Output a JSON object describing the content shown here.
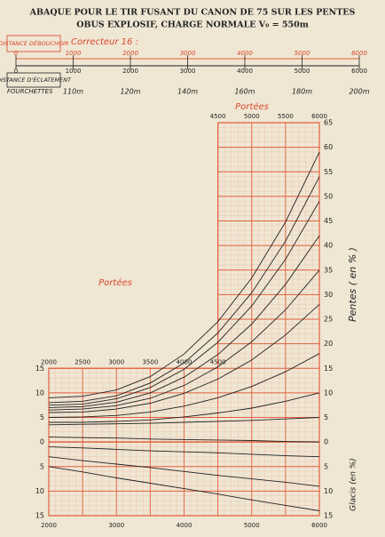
{
  "chart_data": {
    "type": "line",
    "title": "ABAQUE POUR LE TIR FUSANT DU CANON DE 75 SUR LES PENTES",
    "subtitle": "OBUS EXPLOSIF, CHARGE NORMALE V₀ = 550m",
    "fuse_scale": {
      "label": "DISTANCE DÉBOUCHOIR",
      "corrector": "Correcteur 16 :",
      "burst_label": "DISTANCE D'ÉCLATEMENT",
      "lim": [
        0,
        6000
      ],
      "ticks": [
        0,
        1000,
        2000,
        3000,
        4000,
        5000,
        6000
      ],
      "fork_label": "FOURCHETTES",
      "forks": [
        "110m",
        "120m",
        "140m",
        "160m",
        "180m",
        "200m"
      ]
    },
    "range_label": "Portées",
    "ylabel": "Pentes ( en % )",
    "y_lower_label": "Glacis (en %)",
    "x": [
      2000,
      2500,
      3000,
      3500,
      4000,
      4500,
      5000,
      5500,
      6000
    ],
    "xlim": [
      2000,
      6000
    ],
    "xticks": [
      2000,
      2500,
      3000,
      3500,
      4000,
      4500,
      5000,
      5500,
      6000
    ],
    "ylim": [
      -15,
      65
    ],
    "yticks": [
      {
        "value": -15,
        "label": "15"
      },
      {
        "value": -10,
        "label": "10"
      },
      {
        "value": -5,
        "label": "5"
      },
      0,
      5,
      10,
      15,
      20,
      25,
      30,
      35,
      40,
      45,
      50,
      55,
      60,
      65
    ],
    "grid": true,
    "grid_color": "#e2603f",
    "series": [
      {
        "color": "#222",
        "values": [
          9,
          9.3,
          10.6,
          13.3,
          17.9,
          24.5,
          33.4,
          44.8,
          59
        ]
      },
      {
        "color": "#222",
        "values": [
          8,
          8.3,
          9.4,
          12,
          16.1,
          22.2,
          30.4,
          40.9,
          54
        ]
      },
      {
        "color": "#222",
        "values": [
          7.5,
          7.7,
          8.8,
          11.1,
          14.8,
          20.3,
          27.7,
          37.2,
          49
        ]
      },
      {
        "color": "#222",
        "values": [
          7,
          7.2,
          8.1,
          10,
          13.2,
          17.8,
          24,
          32.1,
          42
        ]
      },
      {
        "color": "#222",
        "values": [
          6.5,
          6.7,
          7.4,
          8.9,
          11.5,
          15.3,
          20.4,
          26.9,
          35
        ]
      },
      {
        "color": "#222",
        "values": [
          6,
          6.1,
          6.7,
          7.9,
          9.9,
          12.8,
          16.7,
          21.8,
          28
        ]
      },
      {
        "color": "#222",
        "values": [
          5,
          5.1,
          5.4,
          6.1,
          7.3,
          9,
          11.3,
          14.3,
          18
        ]
      },
      {
        "color": "#222",
        "values": [
          4,
          4,
          4.2,
          4.5,
          5.1,
          5.9,
          6.9,
          8.3,
          10
        ]
      },
      {
        "color": "#222",
        "values": [
          3.5,
          3.6,
          3.7,
          3.8,
          4,
          4.2,
          4.4,
          4.7,
          5
        ]
      },
      {
        "color": "#222",
        "values": [
          1,
          0.9,
          0.8,
          0.6,
          0.5,
          0.4,
          0.3,
          0.1,
          0
        ]
      },
      {
        "color": "#222",
        "values": [
          -1,
          -1.2,
          -1.5,
          -1.8,
          -2,
          -2.2,
          -2.5,
          -2.8,
          -3
        ]
      },
      {
        "color": "#222",
        "values": [
          -3,
          -3.8,
          -4.5,
          -5.2,
          -6,
          -6.8,
          -7.5,
          -8.2,
          -9
        ]
      },
      {
        "color": "#222",
        "values": [
          -5,
          -6.1,
          -7.3,
          -8.4,
          -9.5,
          -10.6,
          -11.8,
          -12.9,
          -14
        ]
      }
    ]
  }
}
